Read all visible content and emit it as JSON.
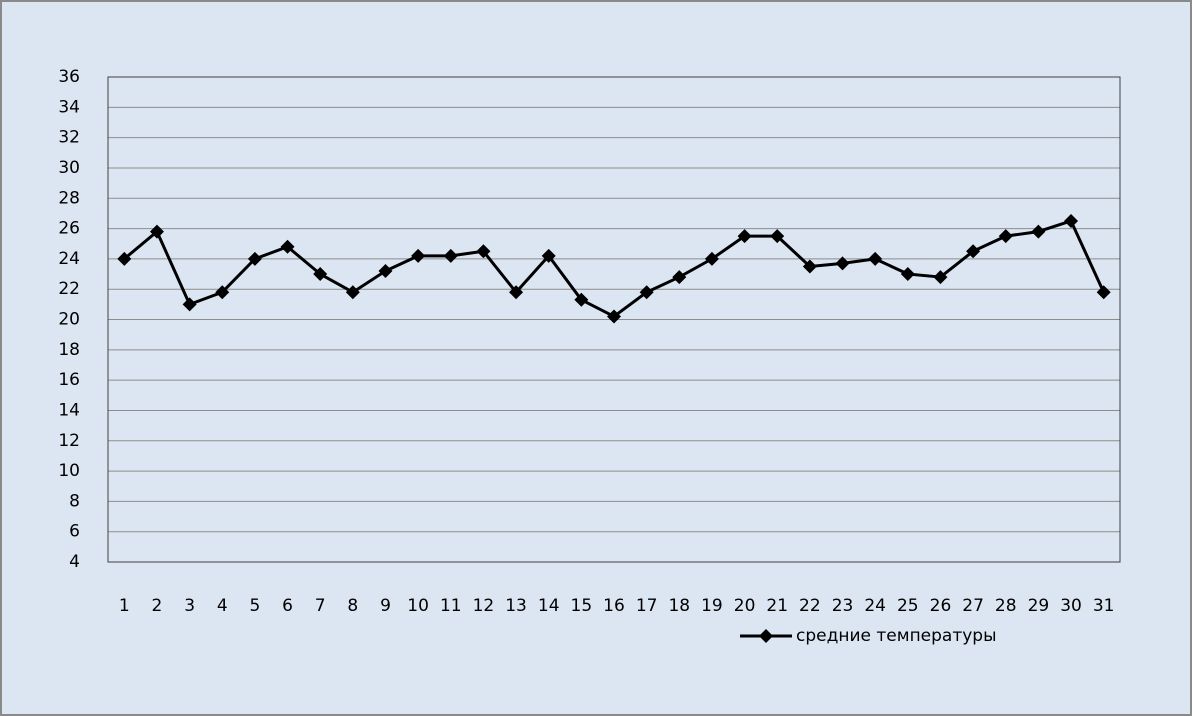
{
  "chart_data": {
    "type": "line",
    "categories": [
      "1",
      "2",
      "3",
      "4",
      "5",
      "6",
      "7",
      "8",
      "9",
      "10",
      "11",
      "12",
      "13",
      "14",
      "15",
      "16",
      "17",
      "18",
      "19",
      "20",
      "21",
      "22",
      "23",
      "24",
      "25",
      "26",
      "27",
      "28",
      "29",
      "30",
      "31"
    ],
    "series": [
      {
        "name": "средние температуры",
        "color": "#000000",
        "values": [
          24,
          25.8,
          21,
          21.8,
          24,
          24.8,
          23,
          21.8,
          23.2,
          24.2,
          24.2,
          24.5,
          21.8,
          24.2,
          21.3,
          20.2,
          21.8,
          22.8,
          24,
          25.5,
          25.5,
          23.5,
          23.7,
          24,
          23,
          22.8,
          24.5,
          25.5,
          25.8,
          26.5,
          21.8
        ]
      }
    ],
    "ylim": [
      4,
      36
    ],
    "yticks": [
      4,
      6,
      8,
      10,
      12,
      14,
      16,
      18,
      20,
      22,
      24,
      26,
      28,
      30,
      32,
      34,
      36
    ],
    "grid": true,
    "legend": "bottom-right"
  }
}
